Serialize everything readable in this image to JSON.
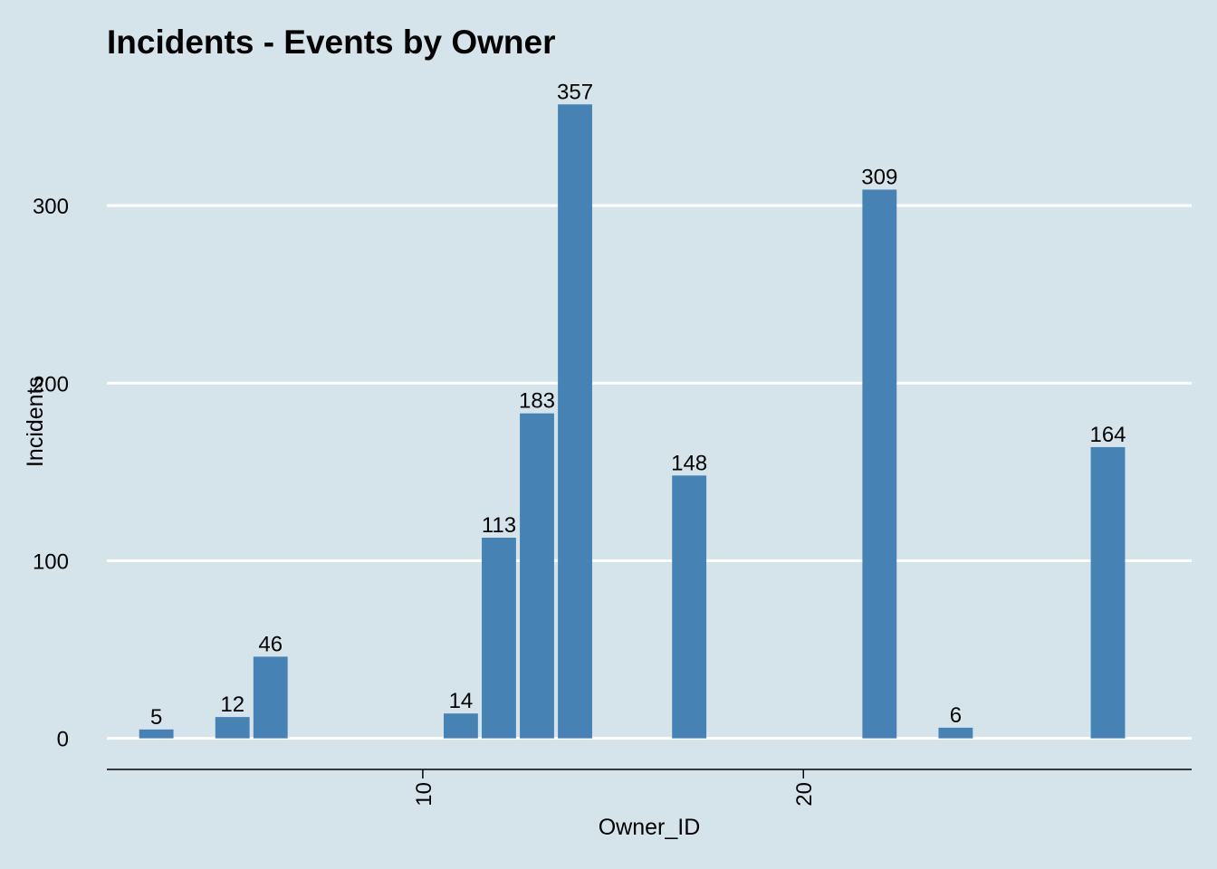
{
  "colors": {
    "background": "#d5e4eb",
    "bar": "#4682b4",
    "grid": "#ffffff",
    "axis": "#000000",
    "text": "#000000"
  },
  "chart_data": {
    "type": "bar",
    "title": "Incidents - Events by Owner",
    "xlabel": "Owner_ID",
    "ylabel": "Incidents",
    "x": [
      3,
      5,
      6,
      11,
      12,
      13,
      14,
      17,
      22,
      24,
      28
    ],
    "values": [
      5,
      12,
      46,
      14,
      113,
      183,
      357,
      148,
      309,
      6,
      164
    ],
    "xlim": [
      1.7,
      30.2
    ],
    "ylim": [
      -17.5,
      375
    ],
    "xticks": [
      10,
      20
    ],
    "yticks": [
      0,
      100,
      200,
      300
    ],
    "x_tick_label_rotation": "vertical",
    "horizontal_grid": true,
    "vertical_grid": false,
    "data_labels": true
  }
}
